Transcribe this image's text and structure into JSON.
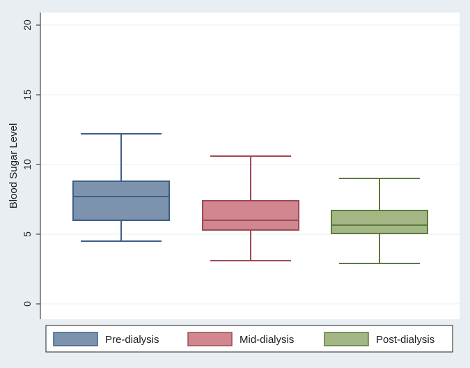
{
  "chart_data": {
    "type": "box",
    "title": "",
    "xlabel": "",
    "ylabel": "Blood Sugar Level",
    "ylim": [
      -0.5,
      21
    ],
    "yticks": [
      0,
      5,
      10,
      15,
      20
    ],
    "grid": true,
    "legend_position": "bottom",
    "series": [
      {
        "name": "Pre-dialysis",
        "color": "#7d93ad",
        "stroke": "#3d5f86",
        "whisker_low": 4.5,
        "q1": 6.0,
        "median": 7.7,
        "q3": 8.8,
        "whisker_high": 12.2
      },
      {
        "name": "Mid-dialysis",
        "color": "#d0878f",
        "stroke": "#a04a55",
        "whisker_low": 3.1,
        "q1": 5.3,
        "median": 6.0,
        "q3": 7.4,
        "whisker_high": 10.6
      },
      {
        "name": "Post-dialysis",
        "color": "#a3b785",
        "stroke": "#5d7a3c",
        "whisker_low": 2.9,
        "q1": 5.05,
        "median": 5.65,
        "q3": 6.7,
        "whisker_high": 9.0
      }
    ]
  }
}
